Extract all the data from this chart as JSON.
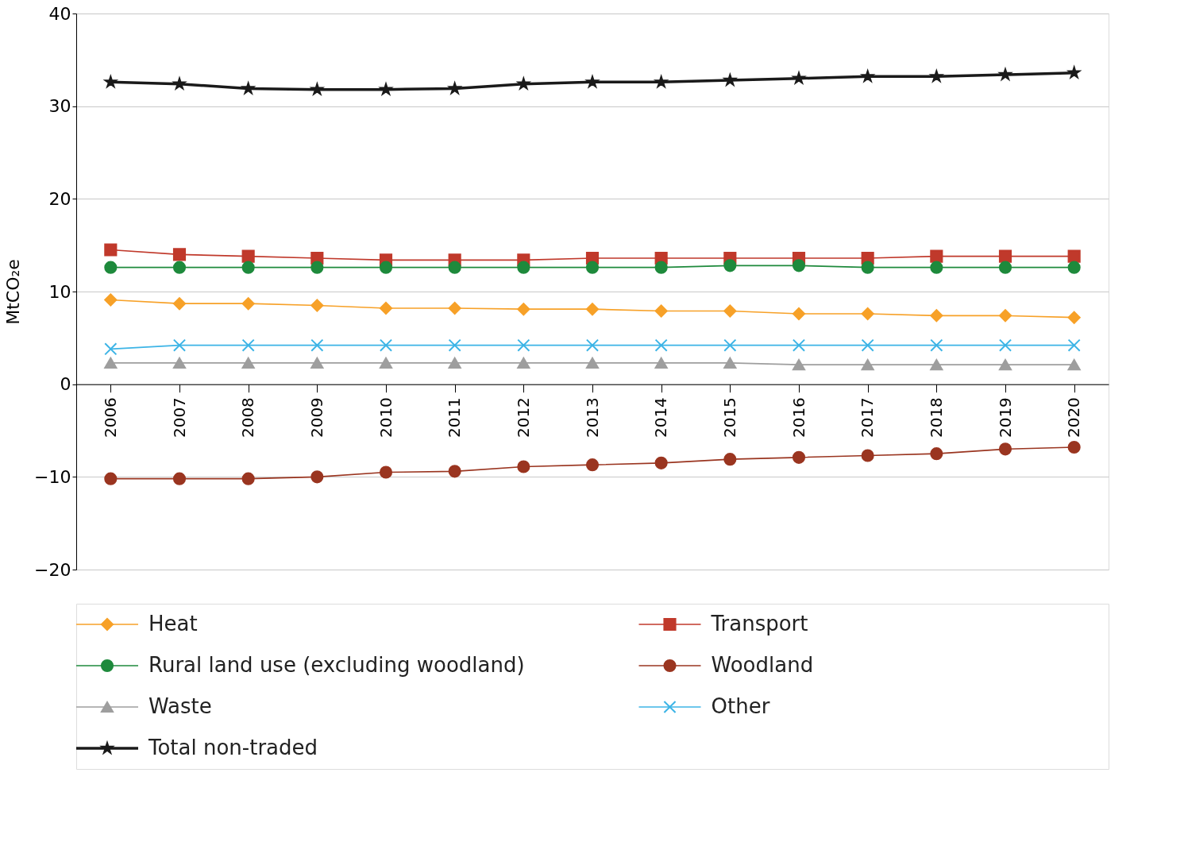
{
  "chart_data": {
    "type": "line",
    "ylabel": "MtCO₂e",
    "categories": [
      "2006",
      "2007",
      "2008",
      "2009",
      "2010",
      "2011",
      "2012",
      "2013",
      "2014",
      "2015",
      "2016",
      "2017",
      "2018",
      "2019",
      "2020"
    ],
    "ylim": [
      -20,
      40
    ],
    "yticks": [
      -20,
      -10,
      0,
      10,
      20,
      30,
      40
    ],
    "grid": "y",
    "legend": "bottom",
    "series": [
      {
        "name": "Heat",
        "color": "#f7a128",
        "marker": "diamond",
        "values": [
          9.1,
          8.7,
          8.7,
          8.5,
          8.2,
          8.2,
          8.1,
          8.1,
          7.9,
          7.9,
          7.6,
          7.6,
          7.4,
          7.4,
          7.2
        ]
      },
      {
        "name": "Transport",
        "color": "#c0392b",
        "marker": "square",
        "values": [
          14.5,
          14.0,
          13.8,
          13.6,
          13.4,
          13.4,
          13.4,
          13.6,
          13.6,
          13.6,
          13.6,
          13.6,
          13.8,
          13.8,
          13.8
        ]
      },
      {
        "name": "Rural land use (excluding woodland)",
        "color": "#1e8a3c",
        "marker": "circle",
        "values": [
          12.6,
          12.6,
          12.6,
          12.6,
          12.6,
          12.6,
          12.6,
          12.6,
          12.6,
          12.8,
          12.8,
          12.6,
          12.6,
          12.6,
          12.6
        ]
      },
      {
        "name": "Woodland",
        "color": "#9a3520",
        "marker": "circle",
        "values": [
          -10.2,
          -10.2,
          -10.2,
          -10.0,
          -9.5,
          -9.4,
          -8.9,
          -8.7,
          -8.5,
          -8.1,
          -7.9,
          -7.7,
          -7.5,
          -7.0,
          -6.8
        ]
      },
      {
        "name": "Waste",
        "color": "#9e9e9e",
        "marker": "triangle",
        "values": [
          2.3,
          2.3,
          2.3,
          2.3,
          2.3,
          2.3,
          2.3,
          2.3,
          2.3,
          2.3,
          2.1,
          2.1,
          2.1,
          2.1,
          2.1
        ]
      },
      {
        "name": "Other",
        "color": "#3cb4e6",
        "marker": "cross",
        "values": [
          3.8,
          4.2,
          4.2,
          4.2,
          4.2,
          4.2,
          4.2,
          4.2,
          4.2,
          4.2,
          4.2,
          4.2,
          4.2,
          4.2,
          4.2
        ]
      },
      {
        "name": "Total non-traded",
        "color": "#1a1a1a",
        "marker": "star",
        "values": [
          32.6,
          32.4,
          31.9,
          31.8,
          31.8,
          31.9,
          32.4,
          32.6,
          32.6,
          32.8,
          33.0,
          33.2,
          33.2,
          33.4,
          33.6
        ]
      }
    ]
  }
}
